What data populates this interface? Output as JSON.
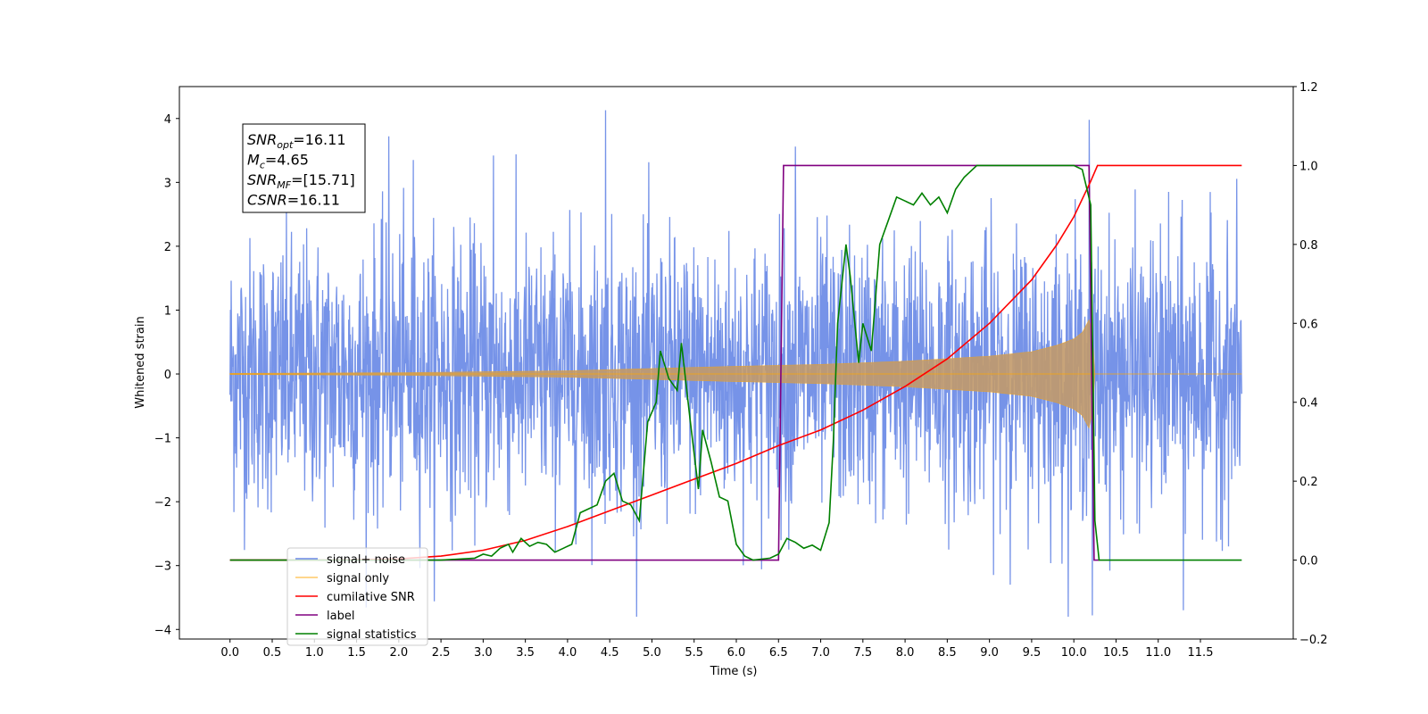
{
  "chart_data": {
    "type": "line",
    "xlabel": "Time (s)",
    "ylabel": "Whitened strain",
    "xlim": [
      -0.6,
      12.6
    ],
    "ylim": [
      -4.15,
      4.5
    ],
    "ylim_right": [
      -0.2,
      1.2
    ],
    "x_ticks": [
      "0.0",
      "0.5",
      "1.0",
      "1.5",
      "2.0",
      "2.5",
      "3.0",
      "3.5",
      "4.0",
      "4.5",
      "5.0",
      "5.5",
      "6.0",
      "6.5",
      "7.0",
      "7.5",
      "8.0",
      "8.5",
      "9.0",
      "9.5",
      "10.0",
      "10.5",
      "11.0",
      "11.5"
    ],
    "y_ticks_left": [
      "−4",
      "−3",
      "−2",
      "−1",
      "0",
      "1",
      "2",
      "3",
      "4"
    ],
    "y_ticks_right": [
      "−0.2",
      "0.0",
      "0.2",
      "0.4",
      "0.6",
      "0.8",
      "1.0",
      "1.2"
    ],
    "legend_position": "lower-left",
    "annotation": {
      "lines": [
        {
          "sym": "SNR",
          "sub": "opt",
          "text": "=16.11"
        },
        {
          "sym": "M",
          "sub": "c",
          "text": "=4.65"
        },
        {
          "sym": "SNR",
          "sub": "MF",
          "text": "=[15.71]"
        },
        {
          "sym": "CSNR",
          "sub": "",
          "text": "=16.11"
        }
      ]
    },
    "colors": {
      "noise": "#6a8ae6",
      "signal": "#ffa500",
      "cumulative": "#ff0000",
      "label": "#800080",
      "statistics": "#008000"
    },
    "series": [
      {
        "name": "signal+ noise",
        "axis": "left",
        "x_range": [
          0.0,
          11.99
        ],
        "amplitude_range": [
          -3.8,
          4.13
        ],
        "peaks": [
          [
            4.45,
            4.13
          ],
          [
            10.18,
            3.98
          ],
          [
            1.88,
            3.72
          ],
          [
            3.12,
            3.42
          ],
          [
            6.7,
            3.56
          ],
          [
            2.17,
            3.35
          ],
          [
            10.22,
            -3.78
          ],
          [
            11.3,
            -3.7
          ]
        ]
      },
      {
        "name": "signal only",
        "axis": "left",
        "x_range": [
          0.0,
          10.25
        ],
        "envelope_points": [
          [
            0.0,
            0.01
          ],
          [
            2.0,
            0.02
          ],
          [
            4.0,
            0.05
          ],
          [
            6.0,
            0.12
          ],
          [
            7.0,
            0.15
          ],
          [
            8.0,
            0.2
          ],
          [
            9.0,
            0.28
          ],
          [
            9.5,
            0.35
          ],
          [
            9.8,
            0.45
          ],
          [
            10.0,
            0.55
          ],
          [
            10.1,
            0.65
          ],
          [
            10.18,
            0.85
          ],
          [
            10.22,
            0.6
          ],
          [
            10.25,
            0.01
          ]
        ]
      },
      {
        "name": "cumilative SNR",
        "axis": "right",
        "points": [
          [
            0,
            0
          ],
          [
            1,
            0
          ],
          [
            1.5,
            0.001
          ],
          [
            2,
            0.003
          ],
          [
            2.5,
            0.01
          ],
          [
            3,
            0.025
          ],
          [
            3.5,
            0.05
          ],
          [
            4,
            0.085
          ],
          [
            4.5,
            0.125
          ],
          [
            5,
            0.165
          ],
          [
            5.5,
            0.205
          ],
          [
            6,
            0.245
          ],
          [
            6.5,
            0.29
          ],
          [
            7,
            0.33
          ],
          [
            7.5,
            0.38
          ],
          [
            8,
            0.44
          ],
          [
            8.5,
            0.51
          ],
          [
            9,
            0.6
          ],
          [
            9.5,
            0.71
          ],
          [
            9.8,
            0.8
          ],
          [
            10,
            0.87
          ],
          [
            10.2,
            0.96
          ],
          [
            10.28,
            1.0
          ],
          [
            11.99,
            1.0
          ]
        ]
      },
      {
        "name": "label",
        "axis": "right",
        "points": [
          [
            0,
            0
          ],
          [
            6.5,
            0
          ],
          [
            6.56,
            1.0
          ],
          [
            10.18,
            1.0
          ],
          [
            10.24,
            0
          ],
          [
            10.3,
            0
          ]
        ]
      },
      {
        "name": "signal statistics",
        "axis": "right",
        "points": [
          [
            0,
            0
          ],
          [
            2.5,
            0
          ],
          [
            2.9,
            0.005
          ],
          [
            3.0,
            0.015
          ],
          [
            3.1,
            0.01
          ],
          [
            3.2,
            0.03
          ],
          [
            3.3,
            0.04
          ],
          [
            3.35,
            0.02
          ],
          [
            3.45,
            0.055
          ],
          [
            3.55,
            0.035
          ],
          [
            3.65,
            0.045
          ],
          [
            3.75,
            0.04
          ],
          [
            3.85,
            0.02
          ],
          [
            3.95,
            0.03
          ],
          [
            4.05,
            0.04
          ],
          [
            4.15,
            0.12
          ],
          [
            4.25,
            0.13
          ],
          [
            4.35,
            0.14
          ],
          [
            4.45,
            0.2
          ],
          [
            4.55,
            0.22
          ],
          [
            4.65,
            0.15
          ],
          [
            4.75,
            0.14
          ],
          [
            4.85,
            0.1
          ],
          [
            4.95,
            0.35
          ],
          [
            5.05,
            0.4
          ],
          [
            5.1,
            0.53
          ],
          [
            5.2,
            0.46
          ],
          [
            5.3,
            0.43
          ],
          [
            5.35,
            0.55
          ],
          [
            5.45,
            0.36
          ],
          [
            5.55,
            0.18
          ],
          [
            5.6,
            0.33
          ],
          [
            5.7,
            0.25
          ],
          [
            5.8,
            0.16
          ],
          [
            5.9,
            0.15
          ],
          [
            6.0,
            0.04
          ],
          [
            6.1,
            0.01
          ],
          [
            6.2,
            0.0
          ],
          [
            6.4,
            0.005
          ],
          [
            6.5,
            0.015
          ],
          [
            6.6,
            0.055
          ],
          [
            6.7,
            0.045
          ],
          [
            6.8,
            0.03
          ],
          [
            6.9,
            0.038
          ],
          [
            7.0,
            0.025
          ],
          [
            7.1,
            0.095
          ],
          [
            7.15,
            0.3
          ],
          [
            7.2,
            0.6
          ],
          [
            7.3,
            0.8
          ],
          [
            7.35,
            0.72
          ],
          [
            7.45,
            0.5
          ],
          [
            7.5,
            0.6
          ],
          [
            7.6,
            0.53
          ],
          [
            7.7,
            0.8
          ],
          [
            7.8,
            0.86
          ],
          [
            7.9,
            0.92
          ],
          [
            8.0,
            0.91
          ],
          [
            8.1,
            0.9
          ],
          [
            8.2,
            0.93
          ],
          [
            8.3,
            0.9
          ],
          [
            8.4,
            0.92
          ],
          [
            8.5,
            0.88
          ],
          [
            8.6,
            0.94
          ],
          [
            8.7,
            0.97
          ],
          [
            8.85,
            1.0
          ],
          [
            9.5,
            1.0
          ],
          [
            10.0,
            1.0
          ],
          [
            10.1,
            0.99
          ],
          [
            10.2,
            0.9
          ],
          [
            10.25,
            0.1
          ],
          [
            10.3,
            0.0
          ],
          [
            11.99,
            0.0
          ]
        ]
      }
    ]
  },
  "legend": {
    "items": [
      "signal+ noise",
      "signal only",
      "cumilative SNR",
      "label",
      "signal statistics"
    ]
  }
}
